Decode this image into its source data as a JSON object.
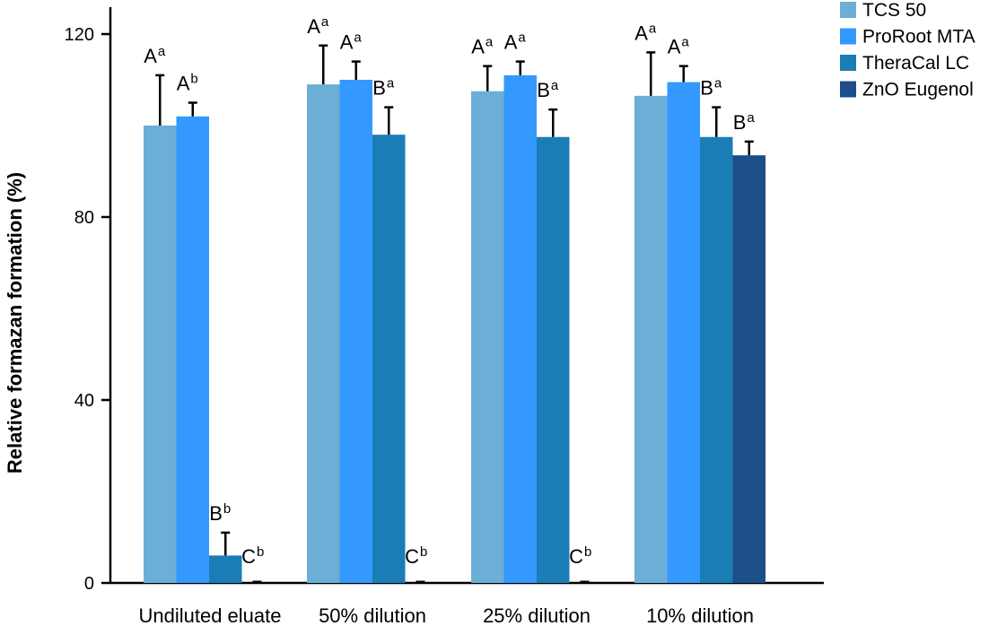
{
  "chart_data": {
    "type": "bar",
    "title": "",
    "xlabel": "",
    "ylabel": "Relative formazan formation (%)",
    "ylim": [
      0,
      126
    ],
    "yticks": [
      0,
      40,
      80,
      120
    ],
    "grid": false,
    "legend_position": "top-right",
    "categories": [
      "Undiluted eluate",
      "50% dilution",
      "25% dilution",
      "10% dilution"
    ],
    "series": [
      {
        "name": "TCS 50",
        "color": "#6baed6",
        "values": [
          100,
          109,
          107.5,
          106.5
        ],
        "errors": [
          11,
          8.5,
          5.5,
          9.5
        ],
        "labels": [
          {
            "letter": "A",
            "sup": "a"
          },
          {
            "letter": "A",
            "sup": "a"
          },
          {
            "letter": "A",
            "sup": "a"
          },
          {
            "letter": "A",
            "sup": "a"
          }
        ]
      },
      {
        "name": "ProRoot MTA",
        "color": "#3399ff",
        "values": [
          102,
          110,
          111,
          109.5
        ],
        "errors": [
          3,
          4,
          3,
          3.5
        ],
        "labels": [
          {
            "letter": "A",
            "sup": "b"
          },
          {
            "letter": "A",
            "sup": "a"
          },
          {
            "letter": "A",
            "sup": "a"
          },
          {
            "letter": "A",
            "sup": "a"
          }
        ]
      },
      {
        "name": "TheraCal LC",
        "color": "#1a7db5",
        "values": [
          6,
          98,
          97.5,
          97.5
        ],
        "errors": [
          5,
          6,
          6,
          6.5
        ],
        "labels": [
          {
            "letter": "B",
            "sup": "b"
          },
          {
            "letter": "B",
            "sup": "a"
          },
          {
            "letter": "B",
            "sup": "a"
          },
          {
            "letter": "B",
            "sup": "a"
          }
        ]
      },
      {
        "name": "ZnO Eugenol",
        "color": "#1c4f8a",
        "values": [
          0.3,
          0.2,
          0.2,
          93.5
        ],
        "errors": [
          0.4,
          0.3,
          0.3,
          3
        ],
        "labels": [
          {
            "letter": "C",
            "sup": "b"
          },
          {
            "letter": "C",
            "sup": "b"
          },
          {
            "letter": "C",
            "sup": "b"
          },
          {
            "letter": "B",
            "sup": "a"
          }
        ]
      }
    ]
  }
}
